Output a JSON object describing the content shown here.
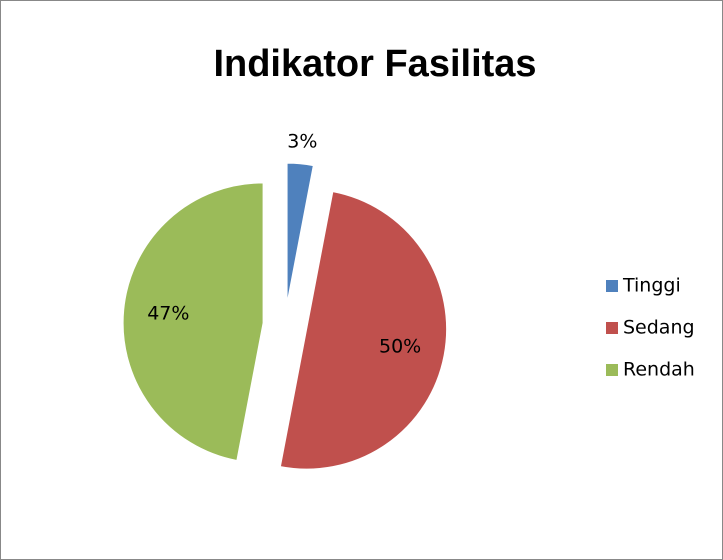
{
  "chart_data": {
    "type": "pie",
    "title": "Indikator Fasilitas",
    "categories": [
      "Tinggi",
      "Sedang",
      "Rendah"
    ],
    "values": [
      3,
      50,
      47
    ],
    "value_labels": [
      "3%",
      "50%",
      "47%"
    ],
    "colors": [
      "#4f81bd",
      "#c0504d",
      "#9bbb59"
    ],
    "legend": "right"
  }
}
